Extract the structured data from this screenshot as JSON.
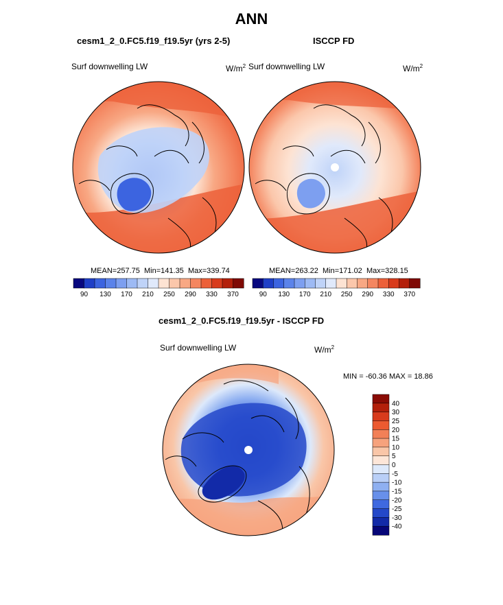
{
  "page": {
    "title": "ANN"
  },
  "panels": {
    "left": {
      "title": "cesm1_2_0.FC5.f19_f19.5yr (yrs 2-5)",
      "variable": "Surf downwelling LW",
      "units": "W/m",
      "units_exp": "2",
      "mean": "257.75",
      "min": "141.35",
      "max": "339.74"
    },
    "right": {
      "title": "ISCCP FD",
      "variable": "Surf downwelling LW",
      "units": "W/m",
      "units_exp": "2",
      "mean": "263.22",
      "min": "171.02",
      "max": "328.15"
    },
    "diff": {
      "title": "cesm1_2_0.FC5.f19_f19.5yr - ISCCP FD",
      "variable": "Surf downwelling LW",
      "units": "W/m",
      "units_exp": "2",
      "minmax_label": "MIN = -60.36 MAX =  18.86"
    }
  },
  "stats_labels": {
    "mean": "MEAN=",
    "min": "Min=",
    "max": "Max="
  },
  "chart_data": [
    {
      "type": "heatmap",
      "name": "model",
      "projection": "north polar stereographic",
      "colorbar": {
        "orientation": "horizontal",
        "levels": [
          90,
          110,
          130,
          150,
          170,
          190,
          210,
          230,
          250,
          270,
          290,
          310,
          330,
          350,
          370
        ],
        "tick_labels": [
          "90",
          "130",
          "170",
          "210",
          "250",
          "290",
          "330",
          "370"
        ],
        "colors": [
          "#08087f",
          "#1f3fc7",
          "#3c64e0",
          "#5b83ea",
          "#7d9ff0",
          "#9dbaf4",
          "#bfd3f8",
          "#e0e9fb",
          "#fde3d3",
          "#fbc7ab",
          "#f8a884",
          "#f48660",
          "#ec6039",
          "#d83b1c",
          "#b3200b",
          "#7f0a05"
        ]
      },
      "stats": {
        "mean": 257.75,
        "min": 141.35,
        "max": 339.74
      }
    },
    {
      "type": "heatmap",
      "name": "obs",
      "projection": "north polar stereographic",
      "colorbar": {
        "orientation": "horizontal",
        "levels": [
          90,
          110,
          130,
          150,
          170,
          190,
          210,
          230,
          250,
          270,
          290,
          310,
          330,
          350,
          370
        ],
        "tick_labels": [
          "90",
          "130",
          "170",
          "210",
          "250",
          "290",
          "330",
          "370"
        ]
      },
      "stats": {
        "mean": 263.22,
        "min": 171.02,
        "max": 328.15
      }
    },
    {
      "type": "heatmap",
      "name": "difference",
      "projection": "north polar stereographic",
      "colorbar": {
        "orientation": "vertical",
        "levels": [
          40,
          30,
          25,
          20,
          15,
          10,
          5,
          0,
          -5,
          -10,
          -15,
          -20,
          -25,
          -30,
          -40
        ],
        "tick_labels": [
          "40",
          "30",
          "25",
          "20",
          "15",
          "10",
          "5",
          "0",
          "-5",
          "-10",
          "-15",
          "-20",
          "-25",
          "-30",
          "-40"
        ],
        "colors": [
          "#8a0c05",
          "#b3200b",
          "#d83b1c",
          "#ec5a30",
          "#f28057",
          "#f6a27d",
          "#f9c6a8",
          "#fde6d8",
          "#dde9fb",
          "#b9cff7",
          "#8fb0f1",
          "#6890ea",
          "#3f69e0",
          "#2448c9",
          "#122aa8",
          "#060678"
        ]
      },
      "stats": {
        "min": -60.36,
        "max": 18.86
      }
    }
  ]
}
